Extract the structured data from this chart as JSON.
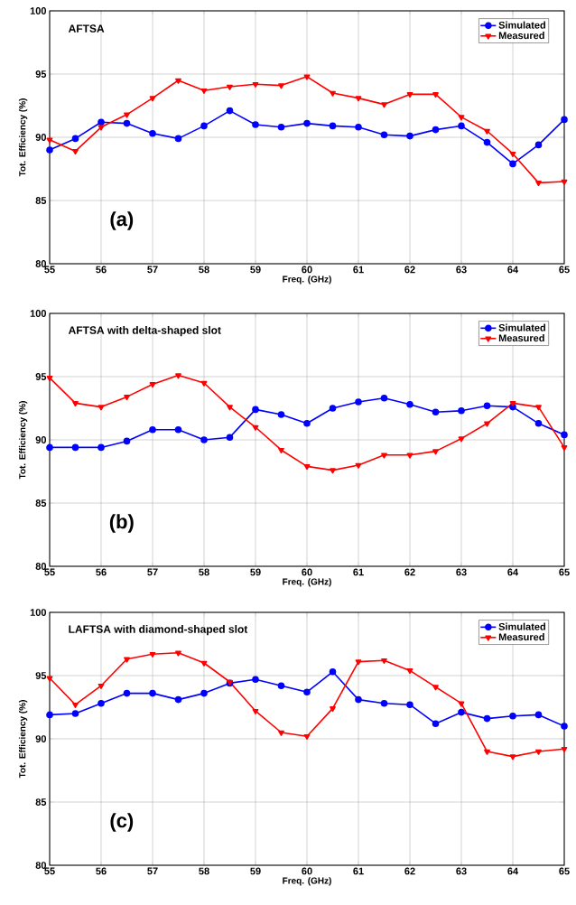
{
  "chart_data": [
    {
      "type": "line",
      "title": "AFTSA",
      "xlabel": "Freq. (GHz)",
      "ylabel": "Tot. Efficiency (%)",
      "annotations": [
        "(a)"
      ],
      "x": [
        55,
        55.5,
        56,
        56.5,
        57,
        57.5,
        58,
        58.5,
        59,
        59.5,
        60,
        60.5,
        61,
        61.5,
        62,
        62.5,
        63,
        63.5,
        64,
        64.5,
        65
      ],
      "series": [
        {
          "name": "Simulated",
          "color": "#0000ff",
          "marker": "circle",
          "values": [
            89.0,
            89.9,
            91.2,
            91.1,
            90.3,
            89.9,
            90.9,
            92.1,
            91.0,
            90.8,
            91.1,
            90.9,
            90.8,
            90.2,
            90.1,
            90.6,
            90.9,
            89.6,
            87.9,
            89.4,
            91.4
          ]
        },
        {
          "name": "Measured",
          "color": "#ff0000",
          "marker": "triangle",
          "values": [
            89.8,
            88.9,
            90.8,
            91.8,
            93.1,
            94.5,
            93.7,
            94.0,
            94.2,
            94.1,
            94.8,
            93.5,
            93.1,
            92.6,
            93.4,
            93.4,
            91.6,
            90.5,
            88.7,
            86.4,
            86.5
          ]
        }
      ],
      "xlim": [
        55,
        65
      ],
      "ylim": [
        80,
        100
      ],
      "xticks": [
        55,
        56,
        57,
        58,
        59,
        60,
        61,
        62,
        63,
        64,
        65
      ],
      "yticks": [
        80,
        85,
        90,
        95,
        100
      ],
      "grid": true,
      "legend": "top right",
      "line_style": "solid"
    },
    {
      "type": "line",
      "title": "AFTSA with delta-shaped slot",
      "xlabel": "Freq. (GHz)",
      "ylabel": "Tot. Efficiency (%)",
      "annotations": [
        "(b)"
      ],
      "x": [
        55,
        55.5,
        56,
        56.5,
        57,
        57.5,
        58,
        58.5,
        59,
        59.5,
        60,
        60.5,
        61,
        61.5,
        62,
        62.5,
        63,
        63.5,
        64,
        64.5,
        65
      ],
      "series": [
        {
          "name": "Simulated",
          "color": "#0000ff",
          "marker": "circle",
          "values": [
            89.4,
            89.4,
            89.4,
            89.9,
            90.8,
            90.8,
            90.0,
            90.2,
            92.4,
            92.0,
            91.3,
            92.5,
            93.0,
            93.3,
            92.8,
            92.2,
            92.3,
            92.7,
            92.6,
            91.3,
            90.4
          ]
        },
        {
          "name": "Measured",
          "color": "#ff0000",
          "marker": "triangle",
          "values": [
            94.9,
            92.9,
            92.6,
            93.4,
            94.4,
            95.1,
            94.5,
            92.6,
            91.0,
            89.2,
            87.9,
            87.6,
            88.0,
            88.8,
            88.8,
            89.1,
            90.1,
            91.3,
            92.9,
            92.6,
            89.4
          ]
        }
      ],
      "xlim": [
        55,
        65
      ],
      "ylim": [
        80,
        100
      ],
      "xticks": [
        55,
        56,
        57,
        58,
        59,
        60,
        61,
        62,
        63,
        64,
        65
      ],
      "yticks": [
        80,
        85,
        90,
        95,
        100
      ],
      "grid": true,
      "legend": "top right",
      "line_style": "solid"
    },
    {
      "type": "line",
      "title": "LAFTSA with diamond-shaped slot",
      "xlabel": "Freq. (GHz)",
      "ylabel": "Tot. Efficiency (%)",
      "annotations": [
        "(c)"
      ],
      "x": [
        55,
        55.5,
        56,
        56.5,
        57,
        57.5,
        58,
        58.5,
        59,
        59.5,
        60,
        60.5,
        61,
        61.5,
        62,
        62.5,
        63,
        63.5,
        64,
        64.5,
        65
      ],
      "series": [
        {
          "name": "Simulated",
          "color": "#0000ff",
          "marker": "circle",
          "values": [
            91.9,
            92.0,
            92.8,
            93.6,
            93.6,
            93.1,
            93.6,
            94.4,
            94.7,
            94.2,
            93.7,
            95.3,
            93.1,
            92.8,
            92.7,
            91.2,
            92.1,
            91.6,
            91.8,
            91.9,
            91.0
          ]
        },
        {
          "name": "Measured",
          "color": "#ff0000",
          "marker": "triangle",
          "values": [
            94.8,
            92.7,
            94.2,
            96.3,
            96.7,
            96.8,
            96.0,
            94.5,
            92.2,
            90.5,
            90.2,
            92.4,
            96.1,
            96.2,
            95.4,
            94.1,
            92.8,
            89.0,
            88.6,
            89.0,
            89.2
          ]
        }
      ],
      "xlim": [
        55,
        65
      ],
      "ylim": [
        80,
        100
      ],
      "xticks": [
        55,
        56,
        57,
        58,
        59,
        60,
        61,
        62,
        63,
        64,
        65
      ],
      "yticks": [
        80,
        85,
        90,
        95,
        100
      ],
      "grid": true,
      "legend": "top right",
      "line_style": "solid"
    }
  ]
}
